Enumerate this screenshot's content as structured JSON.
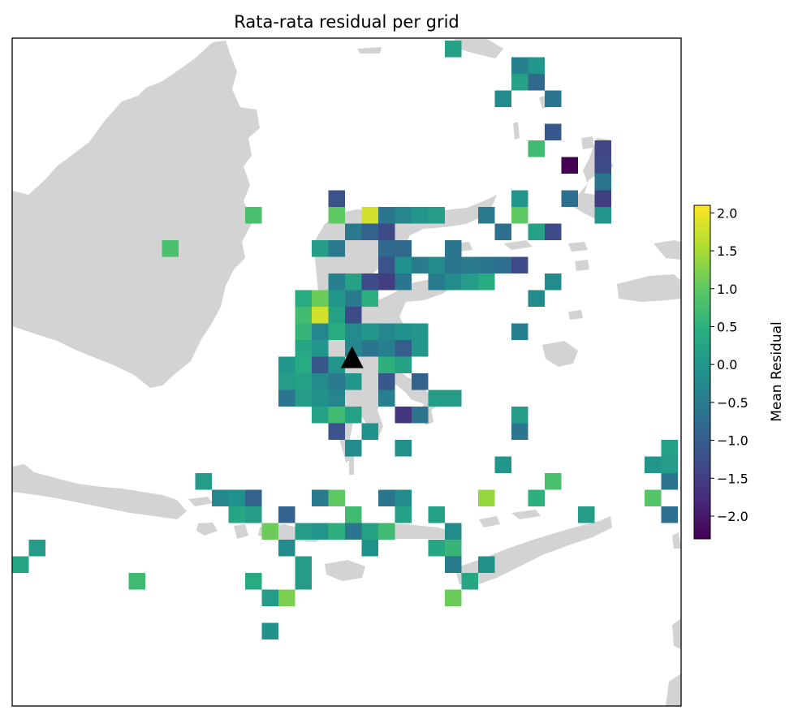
{
  "title": "Rata-rata residual per grid",
  "colorbar": {
    "label": "Mean Residual",
    "min": -2.3,
    "max": 2.1,
    "ticks": [
      2.0,
      1.5,
      1.0,
      0.5,
      0.0,
      -0.5,
      -1.0,
      -1.5,
      -2.0
    ],
    "tick_labels": [
      "2.0",
      "1.5",
      "1.0",
      "0.5",
      "0.0",
      "−0.5",
      "−1.0",
      "−1.5",
      "−2.0"
    ],
    "colormap": "viridis"
  },
  "colors": {
    "land": "#d3d3d3",
    "frame": "#000000",
    "marker": "#000000"
  },
  "chart_data": {
    "type": "heatmap",
    "grid_cols": 41,
    "grid_rows": 41,
    "cells": [
      [
        26,
        0,
        0.2
      ],
      [
        30,
        1,
        -0.4
      ],
      [
        31,
        1,
        0.0
      ],
      [
        30,
        2,
        0.2
      ],
      [
        31,
        2,
        -0.8
      ],
      [
        29,
        3,
        -0.2
      ],
      [
        32,
        3,
        -0.6
      ],
      [
        32,
        5,
        -1.1
      ],
      [
        31,
        6,
        0.7
      ],
      [
        35,
        6,
        -1.4
      ],
      [
        33,
        7,
        -2.3
      ],
      [
        35,
        7,
        -1.3
      ],
      [
        35,
        8,
        -0.6
      ],
      [
        19,
        9,
        -1.2
      ],
      [
        30,
        9,
        0.0
      ],
      [
        33,
        9,
        -0.7
      ],
      [
        35,
        9,
        -1.5
      ],
      [
        14,
        10,
        0.8
      ],
      [
        19,
        10,
        1.0
      ],
      [
        21,
        10,
        1.8
      ],
      [
        22,
        10,
        -0.6
      ],
      [
        23,
        10,
        -0.3
      ],
      [
        24,
        10,
        0.0
      ],
      [
        25,
        10,
        0.1
      ],
      [
        28,
        10,
        -0.5
      ],
      [
        30,
        10,
        1.0
      ],
      [
        35,
        10,
        0.0
      ],
      [
        20,
        11,
        -0.5
      ],
      [
        21,
        11,
        -0.9
      ],
      [
        22,
        11,
        -1.3
      ],
      [
        29,
        11,
        -0.7
      ],
      [
        31,
        11,
        0.2
      ],
      [
        32,
        11,
        -1.3
      ],
      [
        9,
        12,
        0.8
      ],
      [
        18,
        12,
        0.1
      ],
      [
        19,
        12,
        -0.5
      ],
      [
        22,
        12,
        -0.8
      ],
      [
        23,
        12,
        -0.8
      ],
      [
        26,
        12,
        -0.6
      ],
      [
        22,
        13,
        -1.2
      ],
      [
        23,
        13,
        -0.1
      ],
      [
        24,
        13,
        -0.5
      ],
      [
        25,
        13,
        -0.2
      ],
      [
        26,
        13,
        -0.6
      ],
      [
        27,
        13,
        -0.5
      ],
      [
        28,
        13,
        -0.6
      ],
      [
        29,
        13,
        -0.7
      ],
      [
        30,
        13,
        -1.3
      ],
      [
        19,
        14,
        -0.4
      ],
      [
        20,
        14,
        0.2
      ],
      [
        21,
        14,
        -1.3
      ],
      [
        22,
        14,
        -1.5
      ],
      [
        23,
        14,
        -0.6
      ],
      [
        25,
        14,
        -0.5
      ],
      [
        26,
        14,
        -0.2
      ],
      [
        27,
        14,
        0.1
      ],
      [
        28,
        14,
        0.4
      ],
      [
        32,
        14,
        -0.2
      ],
      [
        17,
        15,
        0.4
      ],
      [
        18,
        15,
        1.1
      ],
      [
        19,
        15,
        0.0
      ],
      [
        20,
        15,
        -0.5
      ],
      [
        21,
        15,
        0.5
      ],
      [
        31,
        15,
        -0.2
      ],
      [
        17,
        16,
        0.7
      ],
      [
        18,
        16,
        1.8
      ],
      [
        19,
        16,
        0.2
      ],
      [
        20,
        16,
        -1.3
      ],
      [
        17,
        17,
        0.6
      ],
      [
        18,
        17,
        -0.3
      ],
      [
        19,
        17,
        0.4
      ],
      [
        20,
        17,
        -0.2
      ],
      [
        21,
        17,
        0.0
      ],
      [
        22,
        17,
        -0.3
      ],
      [
        23,
        17,
        -0.1
      ],
      [
        24,
        17,
        0.0
      ],
      [
        30,
        17,
        -0.4
      ],
      [
        17,
        18,
        0.3
      ],
      [
        18,
        18,
        0.0
      ],
      [
        20,
        18,
        -0.3
      ],
      [
        21,
        18,
        -0.6
      ],
      [
        22,
        18,
        -0.4
      ],
      [
        23,
        18,
        -1.0
      ],
      [
        24,
        18,
        0.0
      ],
      [
        16,
        19,
        0.0
      ],
      [
        17,
        19,
        0.4
      ],
      [
        18,
        19,
        -1.1
      ],
      [
        19,
        19,
        0.0
      ],
      [
        22,
        19,
        0.5
      ],
      [
        23,
        19,
        0.2
      ],
      [
        16,
        20,
        0.1
      ],
      [
        17,
        20,
        0.2
      ],
      [
        18,
        20,
        -0.2
      ],
      [
        19,
        20,
        -0.5
      ],
      [
        20,
        20,
        0.0
      ],
      [
        22,
        20,
        -1.1
      ],
      [
        24,
        20,
        -0.9
      ],
      [
        16,
        21,
        -0.6
      ],
      [
        17,
        21,
        0.1
      ],
      [
        18,
        21,
        -0.1
      ],
      [
        19,
        21,
        -0.3
      ],
      [
        22,
        21,
        -0.4
      ],
      [
        25,
        21,
        0.1
      ],
      [
        26,
        21,
        0.1
      ],
      [
        18,
        22,
        0.2
      ],
      [
        19,
        22,
        0.7
      ],
      [
        20,
        22,
        0.2
      ],
      [
        23,
        22,
        -1.6
      ],
      [
        24,
        22,
        -0.6
      ],
      [
        30,
        22,
        0.1
      ],
      [
        19,
        23,
        -1.2
      ],
      [
        21,
        23,
        -0.1
      ],
      [
        30,
        23,
        -0.6
      ],
      [
        20,
        24,
        -0.2
      ],
      [
        23,
        24,
        -0.1
      ],
      [
        39,
        24,
        0.2
      ],
      [
        29,
        25,
        0.0
      ],
      [
        38,
        25,
        0.0
      ],
      [
        39,
        25,
        0.1
      ],
      [
        11,
        26,
        0.1
      ],
      [
        32,
        26,
        0.8
      ],
      [
        39,
        26,
        -0.6
      ],
      [
        12,
        27,
        -0.3
      ],
      [
        13,
        27,
        -0.1
      ],
      [
        14,
        27,
        -0.9
      ],
      [
        18,
        27,
        -0.5
      ],
      [
        19,
        27,
        1.0
      ],
      [
        22,
        27,
        -0.6
      ],
      [
        23,
        27,
        -0.2
      ],
      [
        28,
        27,
        1.4
      ],
      [
        31,
        27,
        0.5
      ],
      [
        38,
        27,
        0.9
      ],
      [
        13,
        28,
        0.3
      ],
      [
        14,
        28,
        0.1
      ],
      [
        16,
        28,
        -0.9
      ],
      [
        20,
        28,
        0.7
      ],
      [
        23,
        28,
        0.2
      ],
      [
        25,
        28,
        0.2
      ],
      [
        34,
        28,
        0.1
      ],
      [
        39,
        28,
        -0.7
      ],
      [
        15,
        29,
        1.1
      ],
      [
        17,
        29,
        0.1
      ],
      [
        18,
        29,
        0.0
      ],
      [
        19,
        29,
        0.5
      ],
      [
        20,
        29,
        -0.6
      ],
      [
        21,
        29,
        0.2
      ],
      [
        22,
        29,
        0.7
      ],
      [
        26,
        29,
        -0.2
      ],
      [
        1,
        30,
        0.1
      ],
      [
        16,
        30,
        -0.2
      ],
      [
        21,
        30,
        -0.1
      ],
      [
        25,
        30,
        0.3
      ],
      [
        26,
        30,
        0.6
      ],
      [
        0,
        31,
        0.3
      ],
      [
        17,
        31,
        0.1
      ],
      [
        26,
        31,
        -0.5
      ],
      [
        28,
        31,
        -0.1
      ],
      [
        7,
        32,
        0.7
      ],
      [
        14,
        32,
        0.4
      ],
      [
        17,
        32,
        0.1
      ],
      [
        27,
        32,
        0.3
      ],
      [
        15,
        33,
        0.1
      ],
      [
        16,
        33,
        1.2
      ],
      [
        26,
        33,
        1.1
      ],
      [
        15,
        35,
        -0.1
      ]
    ],
    "markers": [
      {
        "type": "triangle",
        "col": 20,
        "row": 19.2
      }
    ]
  }
}
